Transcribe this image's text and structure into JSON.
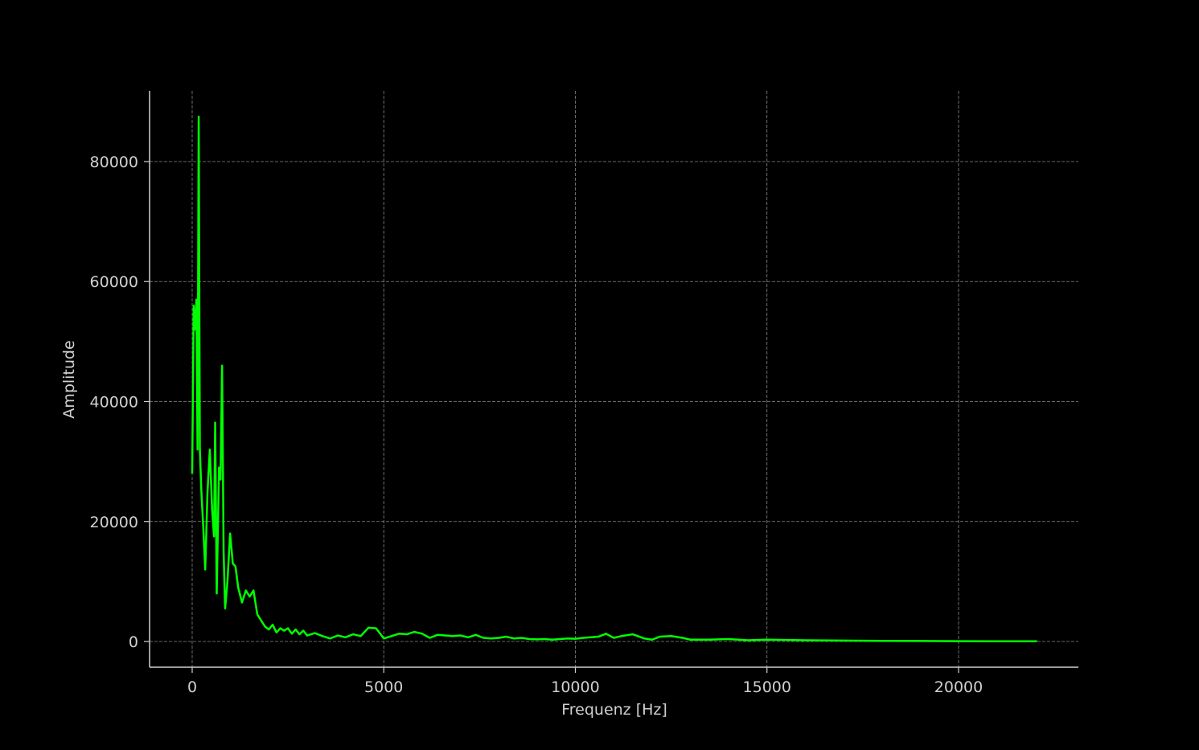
{
  "chart_data": {
    "type": "line",
    "x_label": "Frequenz [Hz]",
    "y_label": "Amplitude",
    "x": [
      0,
      40,
      80,
      110,
      140,
      170,
      200,
      240,
      290,
      340,
      400,
      460,
      520,
      570,
      600,
      640,
      700,
      740,
      780,
      820,
      860,
      920,
      990,
      1060,
      1130,
      1200,
      1300,
      1400,
      1500,
      1600,
      1700,
      1800,
      1900,
      2000,
      2100,
      2200,
      2300,
      2400,
      2500,
      2600,
      2700,
      2800,
      2900,
      3000,
      3200,
      3400,
      3600,
      3800,
      4000,
      4200,
      4400,
      4600,
      4800,
      5000,
      5200,
      5400,
      5600,
      5800,
      6000,
      6200,
      6400,
      6600,
      6800,
      7000,
      7200,
      7400,
      7600,
      7800,
      8000,
      8200,
      8400,
      8600,
      8800,
      9000,
      9200,
      9400,
      9600,
      9800,
      10000,
      10200,
      10400,
      10600,
      10800,
      11000,
      11200,
      11500,
      11800,
      12000,
      12200,
      12500,
      12800,
      13000,
      13500,
      14000,
      14500,
      15000,
      15500,
      16000,
      17000,
      18000,
      19000,
      20000,
      21000,
      22050
    ],
    "values": [
      28000,
      56000,
      52000,
      57000,
      32000,
      87500,
      32000,
      25000,
      19000,
      12000,
      25000,
      32000,
      22000,
      17500,
      36500,
      8000,
      29000,
      27000,
      46000,
      15000,
      5500,
      10000,
      18000,
      13000,
      12500,
      9000,
      6500,
      8500,
      7500,
      8500,
      4500,
      3500,
      2500,
      2000,
      2800,
      1500,
      2200,
      1800,
      2200,
      1300,
      2000,
      1200,
      1800,
      1000,
      1400,
      900,
      500,
      1000,
      700,
      1200,
      900,
      2300,
      2200,
      500,
      900,
      1300,
      1200,
      1600,
      1300,
      600,
      1100,
      1000,
      900,
      1000,
      700,
      1100,
      600,
      500,
      600,
      800,
      500,
      600,
      400,
      350,
      400,
      300,
      400,
      500,
      450,
      600,
      700,
      800,
      1300,
      600,
      900,
      1200,
      500,
      300,
      800,
      900,
      600,
      300,
      300,
      400,
      200,
      300,
      250,
      200,
      150,
      100,
      80,
      50,
      40,
      30
    ],
    "color": "#00ff00",
    "xlim": [
      -1112,
      23127
    ],
    "ylim": [
      -4288,
      91792
    ],
    "xticks": [
      0,
      5000,
      10000,
      15000,
      20000
    ],
    "yticks": [
      0,
      20000,
      40000,
      60000,
      80000
    ],
    "grid": true
  }
}
